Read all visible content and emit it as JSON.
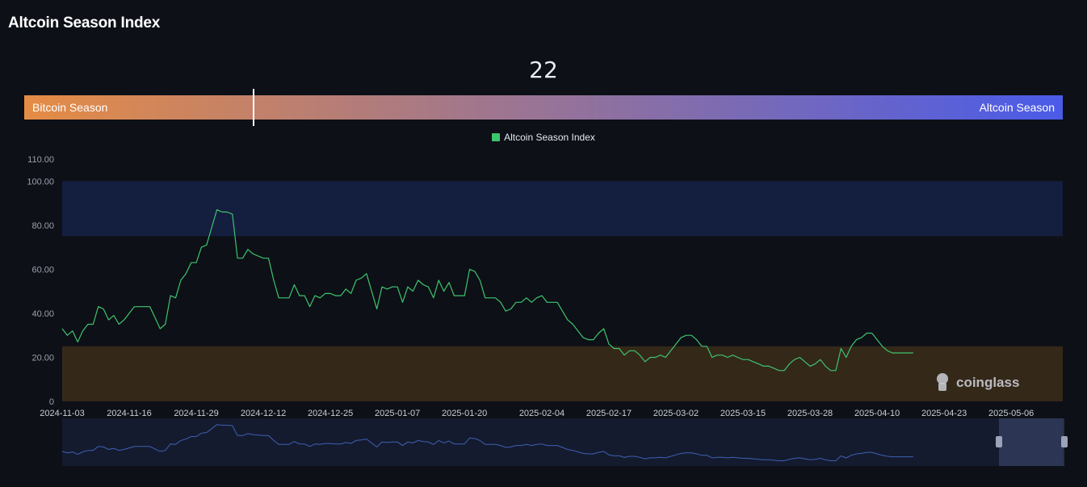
{
  "header": {
    "title": "Altcoin Season Index"
  },
  "gauge": {
    "value": "22",
    "value_num": 22,
    "left_label": "Bitcoin Season",
    "right_label": "Altcoin Season",
    "color_left": "#e58c45",
    "color_right": "#4a5be8"
  },
  "watermark": {
    "text": "coinglass"
  },
  "chart_data": {
    "type": "line",
    "title": "",
    "xlabel": "",
    "ylabel": "",
    "ylim": [
      0,
      110
    ],
    "y_ticks": [
      "0",
      "20.00",
      "40.00",
      "60.00",
      "80.00",
      "100.00",
      "110.00"
    ],
    "x_ticks": [
      "2024-11-03",
      "2024-11-16",
      "2024-11-29",
      "2024-12-12",
      "2024-12-25",
      "2025-01-07",
      "2025-01-20",
      "2025-02-04",
      "2025-02-17",
      "2025-03-02",
      "2025-03-15",
      "2025-03-28",
      "2025-04-10",
      "2025-04-23",
      "2025-05-06"
    ],
    "x_start": "2024-11-03",
    "x_end": "2025-05-16",
    "legend": {
      "position": "top-center",
      "entries": [
        "Altcoin Season Index"
      ]
    },
    "bands": [
      {
        "label": "altcoin-zone",
        "from": 75,
        "to": 100,
        "color": "#141e3f"
      },
      {
        "label": "bitcoin-zone",
        "from": 0,
        "to": 25,
        "color": "#342819"
      }
    ],
    "line_color": "#3ec46d",
    "series": [
      {
        "name": "Altcoin Season Index",
        "points": [
          [
            "2024-11-03",
            33
          ],
          [
            "2024-11-04",
            30
          ],
          [
            "2024-11-05",
            32
          ],
          [
            "2024-11-06",
            27
          ],
          [
            "2024-11-07",
            32
          ],
          [
            "2024-11-08",
            35
          ],
          [
            "2024-11-09",
            35
          ],
          [
            "2024-11-10",
            43
          ],
          [
            "2024-11-11",
            42
          ],
          [
            "2024-11-12",
            37
          ],
          [
            "2024-11-13",
            39
          ],
          [
            "2024-11-14",
            35
          ],
          [
            "2024-11-15",
            37
          ],
          [
            "2024-11-16",
            40
          ],
          [
            "2024-11-17",
            43
          ],
          [
            "2024-11-18",
            43
          ],
          [
            "2024-11-19",
            43
          ],
          [
            "2024-11-20",
            43
          ],
          [
            "2024-11-21",
            38
          ],
          [
            "2024-11-22",
            33
          ],
          [
            "2024-11-23",
            35
          ],
          [
            "2024-11-24",
            48
          ],
          [
            "2024-11-25",
            47
          ],
          [
            "2024-11-26",
            55
          ],
          [
            "2024-11-27",
            58
          ],
          [
            "2024-11-28",
            63
          ],
          [
            "2024-11-29",
            63
          ],
          [
            "2024-11-30",
            70
          ],
          [
            "2024-12-01",
            71
          ],
          [
            "2024-12-02",
            79
          ],
          [
            "2024-12-03",
            87
          ],
          [
            "2024-12-04",
            86
          ],
          [
            "2024-12-05",
            86
          ],
          [
            "2024-12-06",
            85
          ],
          [
            "2024-12-07",
            65
          ],
          [
            "2024-12-08",
            65
          ],
          [
            "2024-12-09",
            69
          ],
          [
            "2024-12-10",
            67
          ],
          [
            "2024-12-11",
            66
          ],
          [
            "2024-12-12",
            65
          ],
          [
            "2024-12-13",
            65
          ],
          [
            "2024-12-14",
            55
          ],
          [
            "2024-12-15",
            47
          ],
          [
            "2024-12-16",
            47
          ],
          [
            "2024-12-17",
            47
          ],
          [
            "2024-12-18",
            53
          ],
          [
            "2024-12-19",
            48
          ],
          [
            "2024-12-20",
            48
          ],
          [
            "2024-12-21",
            43
          ],
          [
            "2024-12-22",
            48
          ],
          [
            "2024-12-23",
            47
          ],
          [
            "2024-12-24",
            49
          ],
          [
            "2024-12-25",
            49
          ],
          [
            "2024-12-26",
            48
          ],
          [
            "2024-12-27",
            48
          ],
          [
            "2024-12-28",
            51
          ],
          [
            "2024-12-29",
            49
          ],
          [
            "2024-12-30",
            55
          ],
          [
            "2024-12-31",
            56
          ],
          [
            "2025-01-01",
            58
          ],
          [
            "2025-01-02",
            50
          ],
          [
            "2025-01-03",
            42
          ],
          [
            "2025-01-04",
            52
          ],
          [
            "2025-01-05",
            51
          ],
          [
            "2025-01-06",
            52
          ],
          [
            "2025-01-07",
            52
          ],
          [
            "2025-01-08",
            45
          ],
          [
            "2025-01-09",
            52
          ],
          [
            "2025-01-10",
            50
          ],
          [
            "2025-01-11",
            55
          ],
          [
            "2025-01-12",
            53
          ],
          [
            "2025-01-13",
            52
          ],
          [
            "2025-01-14",
            47
          ],
          [
            "2025-01-15",
            55
          ],
          [
            "2025-01-16",
            50
          ],
          [
            "2025-01-17",
            54
          ],
          [
            "2025-01-18",
            48
          ],
          [
            "2025-01-19",
            48
          ],
          [
            "2025-01-20",
            48
          ],
          [
            "2025-01-21",
            60
          ],
          [
            "2025-01-22",
            59
          ],
          [
            "2025-01-23",
            55
          ],
          [
            "2025-01-24",
            47
          ],
          [
            "2025-01-25",
            47
          ],
          [
            "2025-01-26",
            47
          ],
          [
            "2025-01-27",
            45
          ],
          [
            "2025-01-28",
            41
          ],
          [
            "2025-01-29",
            42
          ],
          [
            "2025-01-30",
            45
          ],
          [
            "2025-01-31",
            45
          ],
          [
            "2025-02-01",
            47
          ],
          [
            "2025-02-02",
            45
          ],
          [
            "2025-02-03",
            47
          ],
          [
            "2025-02-04",
            48
          ],
          [
            "2025-02-05",
            45
          ],
          [
            "2025-02-06",
            45
          ],
          [
            "2025-02-07",
            45
          ],
          [
            "2025-02-08",
            41
          ],
          [
            "2025-02-09",
            37
          ],
          [
            "2025-02-10",
            35
          ],
          [
            "2025-02-11",
            32
          ],
          [
            "2025-02-12",
            29
          ],
          [
            "2025-02-13",
            28
          ],
          [
            "2025-02-14",
            28
          ],
          [
            "2025-02-15",
            31
          ],
          [
            "2025-02-16",
            33
          ],
          [
            "2025-02-17",
            26
          ],
          [
            "2025-02-18",
            24
          ],
          [
            "2025-02-19",
            24
          ],
          [
            "2025-02-20",
            21
          ],
          [
            "2025-02-21",
            23
          ],
          [
            "2025-02-22",
            23
          ],
          [
            "2025-02-23",
            21
          ],
          [
            "2025-02-24",
            18
          ],
          [
            "2025-02-25",
            20
          ],
          [
            "2025-02-26",
            20
          ],
          [
            "2025-02-27",
            21
          ],
          [
            "2025-02-28",
            20
          ],
          [
            "2025-03-01",
            23
          ],
          [
            "2025-03-02",
            26
          ],
          [
            "2025-03-03",
            29
          ],
          [
            "2025-03-04",
            30
          ],
          [
            "2025-03-05",
            30
          ],
          [
            "2025-03-06",
            28
          ],
          [
            "2025-03-07",
            25
          ],
          [
            "2025-03-08",
            25
          ],
          [
            "2025-03-09",
            20
          ],
          [
            "2025-03-10",
            21
          ],
          [
            "2025-03-11",
            21
          ],
          [
            "2025-03-12",
            20
          ],
          [
            "2025-03-13",
            21
          ],
          [
            "2025-03-14",
            20
          ],
          [
            "2025-03-15",
            19
          ],
          [
            "2025-03-16",
            19
          ],
          [
            "2025-03-17",
            18
          ],
          [
            "2025-03-18",
            17
          ],
          [
            "2025-03-19",
            16
          ],
          [
            "2025-03-20",
            16
          ],
          [
            "2025-03-21",
            15
          ],
          [
            "2025-03-22",
            14
          ],
          [
            "2025-03-23",
            14
          ],
          [
            "2025-03-24",
            17
          ],
          [
            "2025-03-25",
            19
          ],
          [
            "2025-03-26",
            20
          ],
          [
            "2025-03-27",
            18
          ],
          [
            "2025-03-28",
            16
          ],
          [
            "2025-03-29",
            17
          ],
          [
            "2025-03-30",
            19
          ],
          [
            "2025-03-31",
            16
          ],
          [
            "2025-04-01",
            14
          ],
          [
            "2025-04-02",
            14
          ],
          [
            "2025-04-03",
            24
          ],
          [
            "2025-04-04",
            20
          ],
          [
            "2025-04-05",
            25
          ],
          [
            "2025-04-06",
            28
          ],
          [
            "2025-04-07",
            29
          ],
          [
            "2025-04-08",
            31
          ],
          [
            "2025-04-09",
            31
          ],
          [
            "2025-04-10",
            28
          ],
          [
            "2025-04-11",
            25
          ],
          [
            "2025-04-12",
            23
          ],
          [
            "2025-04-13",
            22
          ],
          [
            "2025-04-14",
            22
          ],
          [
            "2025-04-15",
            22
          ],
          [
            "2025-04-16",
            22
          ],
          [
            "2025-04-17",
            22
          ]
        ]
      }
    ]
  }
}
